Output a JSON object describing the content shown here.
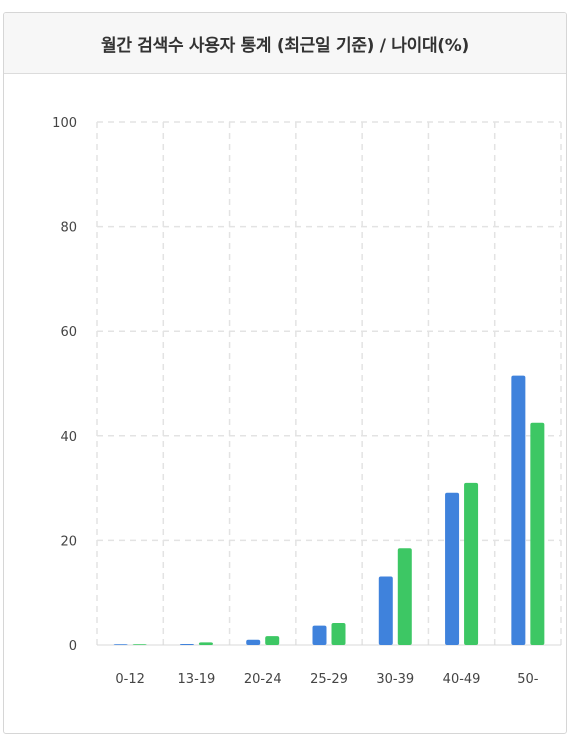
{
  "panel": {
    "title": "월간 검색수 사용자 통계 (최근일 기준) / 나이대(%)"
  },
  "colors": {
    "series_1": "#3f82dc",
    "series_2": "#3dc764",
    "grid": "#e3e3e3",
    "axis_text": "#444444"
  },
  "chart_data": {
    "type": "bar",
    "categories": [
      "0-12",
      "13-19",
      "20-24",
      "25-29",
      "30-39",
      "40-49",
      "50-"
    ],
    "series": [
      {
        "values": [
          0.1,
          0.2,
          1.0,
          3.7,
          13.1,
          29.1,
          51.5
        ]
      },
      {
        "values": [
          0.1,
          0.5,
          1.7,
          4.2,
          18.5,
          31.0,
          42.5
        ]
      }
    ],
    "ylim": [
      0,
      100
    ],
    "yticks": [
      0,
      20,
      40,
      60,
      80,
      100
    ],
    "grid": true,
    "legend": "none"
  }
}
